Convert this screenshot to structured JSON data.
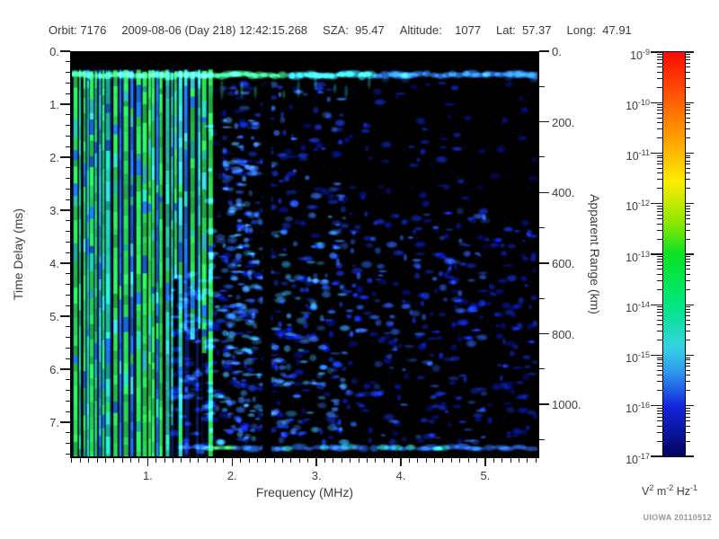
{
  "header": {
    "segments": [
      "Orbit: 7176",
      "2009-08-06 (Day 218) 12:42:15.268",
      "SZA:  95.47",
      "Altitude:    1077",
      "Lat:  57.37",
      "Long:  47.91"
    ]
  },
  "footer": {
    "credit": "UIOWA 20110512"
  },
  "chart_data": {
    "type": "heatmap",
    "subtype": "radar-sounder-ionogram-spectrogram",
    "xlabel": "Frequency (MHz)",
    "ylabel_left": "Time Delay (ms)",
    "ylabel_right": "Apparent Range (km)",
    "x_range_mhz": [
      0.08,
      5.64
    ],
    "x_major_ticks": [
      {
        "v": 1,
        "label": "1."
      },
      {
        "v": 2,
        "label": "2."
      },
      {
        "v": 3,
        "label": "3."
      },
      {
        "v": 4,
        "label": "4."
      },
      {
        "v": 5,
        "label": "5."
      }
    ],
    "x_minor_step": 0.1,
    "y_range_ms": [
      0,
      7.68
    ],
    "y_major_ticks": [
      {
        "v": 0,
        "label": "0."
      },
      {
        "v": 1,
        "label": "1."
      },
      {
        "v": 2,
        "label": "2."
      },
      {
        "v": 3,
        "label": "3."
      },
      {
        "v": 4,
        "label": "4."
      },
      {
        "v": 5,
        "label": "5."
      },
      {
        "v": 6,
        "label": "6."
      },
      {
        "v": 7,
        "label": "7."
      }
    ],
    "y_minor_step": 0.2,
    "right_range_km": [
      0,
      1152
    ],
    "right_major_ticks": [
      {
        "v": 0,
        "label": "0."
      },
      {
        "v": 200,
        "label": "200."
      },
      {
        "v": 400,
        "label": "400."
      },
      {
        "v": 600,
        "label": "600."
      },
      {
        "v": 800,
        "label": "800."
      },
      {
        "v": 1000,
        "label": "1000."
      }
    ],
    "right_minor_step": 100,
    "colorbar": {
      "scale": "log10",
      "decade_exps": [
        -9,
        -10,
        -11,
        -12,
        -13,
        -14,
        -15,
        -16,
        -17
      ],
      "units_parts": [
        {
          "base": "V",
          "sup": "2"
        },
        {
          "base": "m",
          "sup": "-2"
        },
        {
          "base": "Hz",
          "sup": "-1"
        }
      ],
      "gradient": [
        {
          "pos": 0.0,
          "color": "#f80c00"
        },
        {
          "pos": 0.09,
          "color": "#ff4a00"
        },
        {
          "pos": 0.22,
          "color": "#ffa400"
        },
        {
          "pos": 0.32,
          "color": "#fcec00"
        },
        {
          "pos": 0.42,
          "color": "#8fe800"
        },
        {
          "pos": 0.5,
          "color": "#0ae224"
        },
        {
          "pos": 0.625,
          "color": "#00e77e"
        },
        {
          "pos": 0.73,
          "color": "#35d2e2"
        },
        {
          "pos": 0.79,
          "color": "#2f9bee"
        },
        {
          "pos": 0.875,
          "color": "#1427dd"
        },
        {
          "pos": 1.0,
          "color": "#01035e"
        }
      ]
    },
    "seed": 20110512,
    "features": {
      "background": "#000000",
      "top_black_band_ms": [
        0,
        0.3
      ],
      "plasma_stripes": {
        "f_range": [
          0.09,
          1.72
        ],
        "full_depth_until_mhz": 1.22,
        "top_ms": 0.31,
        "colors": [
          "#2ce455",
          "#25dab4",
          "#3bd9d9",
          "#1f76e8"
        ],
        "underlay": "#08175a"
      },
      "surface_echo_band": {
        "delay_ms": 0.42,
        "half_width_ms": 0.12,
        "color_by_freq": [
          {
            "f": 1.55,
            "color": "#3fe573"
          },
          {
            "f": 2.65,
            "color": "#3fe08c"
          },
          {
            "f": 3.65,
            "color": "#38cfe8"
          },
          {
            "f": 5.64,
            "color": "#2f7fe8"
          }
        ]
      },
      "absorption_gap": {
        "f_range": [
          2.36,
          2.46
        ],
        "top_ms": 0.58
      },
      "secondary_gap": {
        "f_range": [
          1.77,
          1.88
        ],
        "ms_range": [
          0.58,
          3.1
        ],
        "alpha": 0.75
      },
      "diffuse_regions": [
        {
          "f": [
            1.72,
            3.35
          ],
          "ms": [
            0.55,
            3.0
          ],
          "count": 150,
          "palette": [
            "#0a1ccc",
            "#1c3df2",
            "#3d7bff"
          ]
        },
        {
          "f": [
            1.72,
            3.35
          ],
          "ms": [
            3.0,
            7.42
          ],
          "count": 430,
          "palette": [
            "#0a1ccc",
            "#1c3df2",
            "#3d7bff",
            "#35a0e8"
          ]
        },
        {
          "f": [
            1.9,
            2.3
          ],
          "ms": [
            1.2,
            7.4
          ],
          "count": 90,
          "palette": [
            "#2b62f0",
            "#45a4f2"
          ]
        },
        {
          "f": [
            3.35,
            4.8
          ],
          "ms": [
            0.55,
            3.0
          ],
          "count": 42,
          "palette": [
            "#09139e",
            "#122cd6"
          ]
        },
        {
          "f": [
            3.35,
            5.05
          ],
          "ms": [
            3.0,
            7.42
          ],
          "count": 270,
          "palette": [
            "#0a18b6",
            "#1733e8",
            "#2f62f0"
          ]
        },
        {
          "f": [
            4.8,
            5.64
          ],
          "ms": [
            0.55,
            3.2
          ],
          "count": 12,
          "palette": [
            "#09139e"
          ]
        },
        {
          "f": [
            5.05,
            5.64
          ],
          "ms": [
            3.2,
            7.42
          ],
          "count": 85,
          "palette": [
            "#0a18b6",
            "#1733e8"
          ]
        },
        {
          "f": [
            1.25,
            1.74
          ],
          "ms": [
            4.2,
            7.6
          ],
          "count": 90,
          "palette": [
            "#1030c8",
            "#2a63e8"
          ]
        }
      ],
      "speckle": {
        "count": 500,
        "color": "#0a18b0",
        "f_min": 1.72,
        "ms_range": [
          0.6,
          7.5
        ]
      },
      "bottom_band": {
        "delay_ms": 7.52,
        "f_start": 1.6,
        "bright_green_f": [
          1.62,
          1.98
        ],
        "cyan_f": [
          2.55,
          4.55
        ],
        "colors": {
          "green": "#49e87c",
          "cyan": "#30d6e0",
          "blue": "#2a6ce8"
        }
      }
    }
  }
}
